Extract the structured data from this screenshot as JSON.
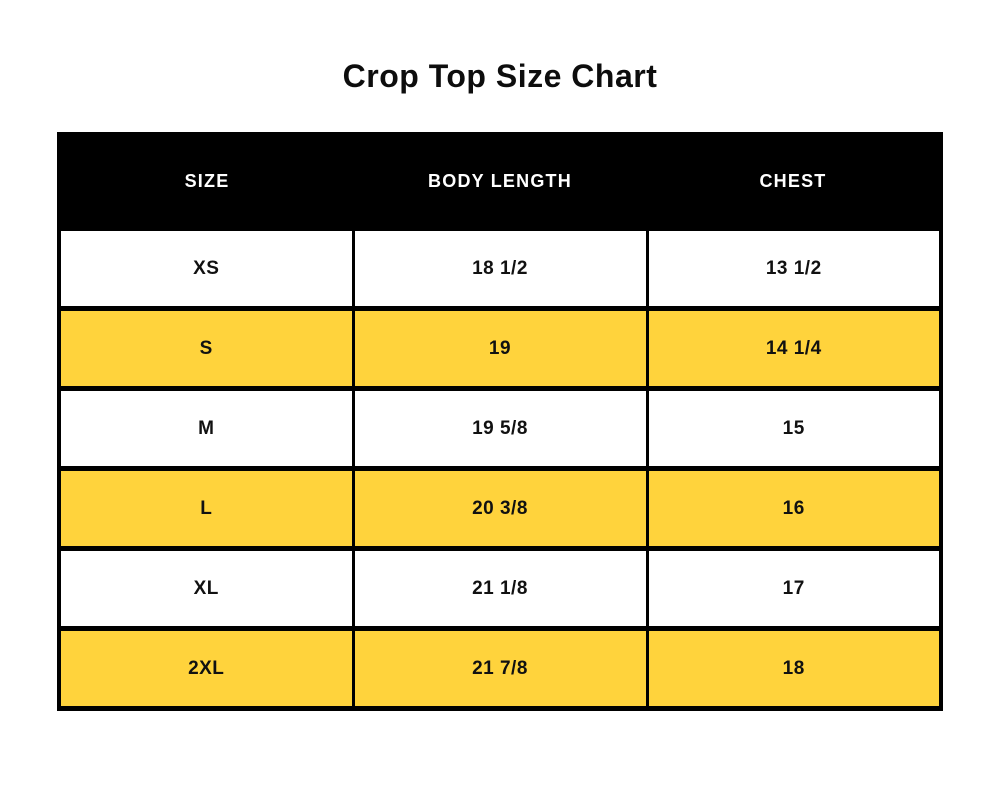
{
  "chart_data": {
    "type": "table",
    "title": "Crop Top Size Chart",
    "columns": [
      "SIZE",
      "BODY LENGTH",
      "CHEST"
    ],
    "rows": [
      [
        "XS",
        "18 1/2",
        "13 1/2"
      ],
      [
        "S",
        "19",
        "14 1/4"
      ],
      [
        "M",
        "19 5/8",
        "15"
      ],
      [
        "L",
        "20 3/8",
        "16"
      ],
      [
        "XL",
        "21 1/8",
        "17"
      ],
      [
        "2XL",
        "21 7/8",
        "18"
      ]
    ],
    "highlighted_rows": [
      "S",
      "L",
      "2XL"
    ],
    "legend_position": "none",
    "grid": "solid-black-borders"
  },
  "colors": {
    "header_bg": "#000000",
    "header_text": "#ffffff",
    "row_highlight": "#FFD33C",
    "row_default": "#ffffff",
    "border": "#000000",
    "title_text": "#0d0d0d",
    "cell_text": "#111111"
  }
}
